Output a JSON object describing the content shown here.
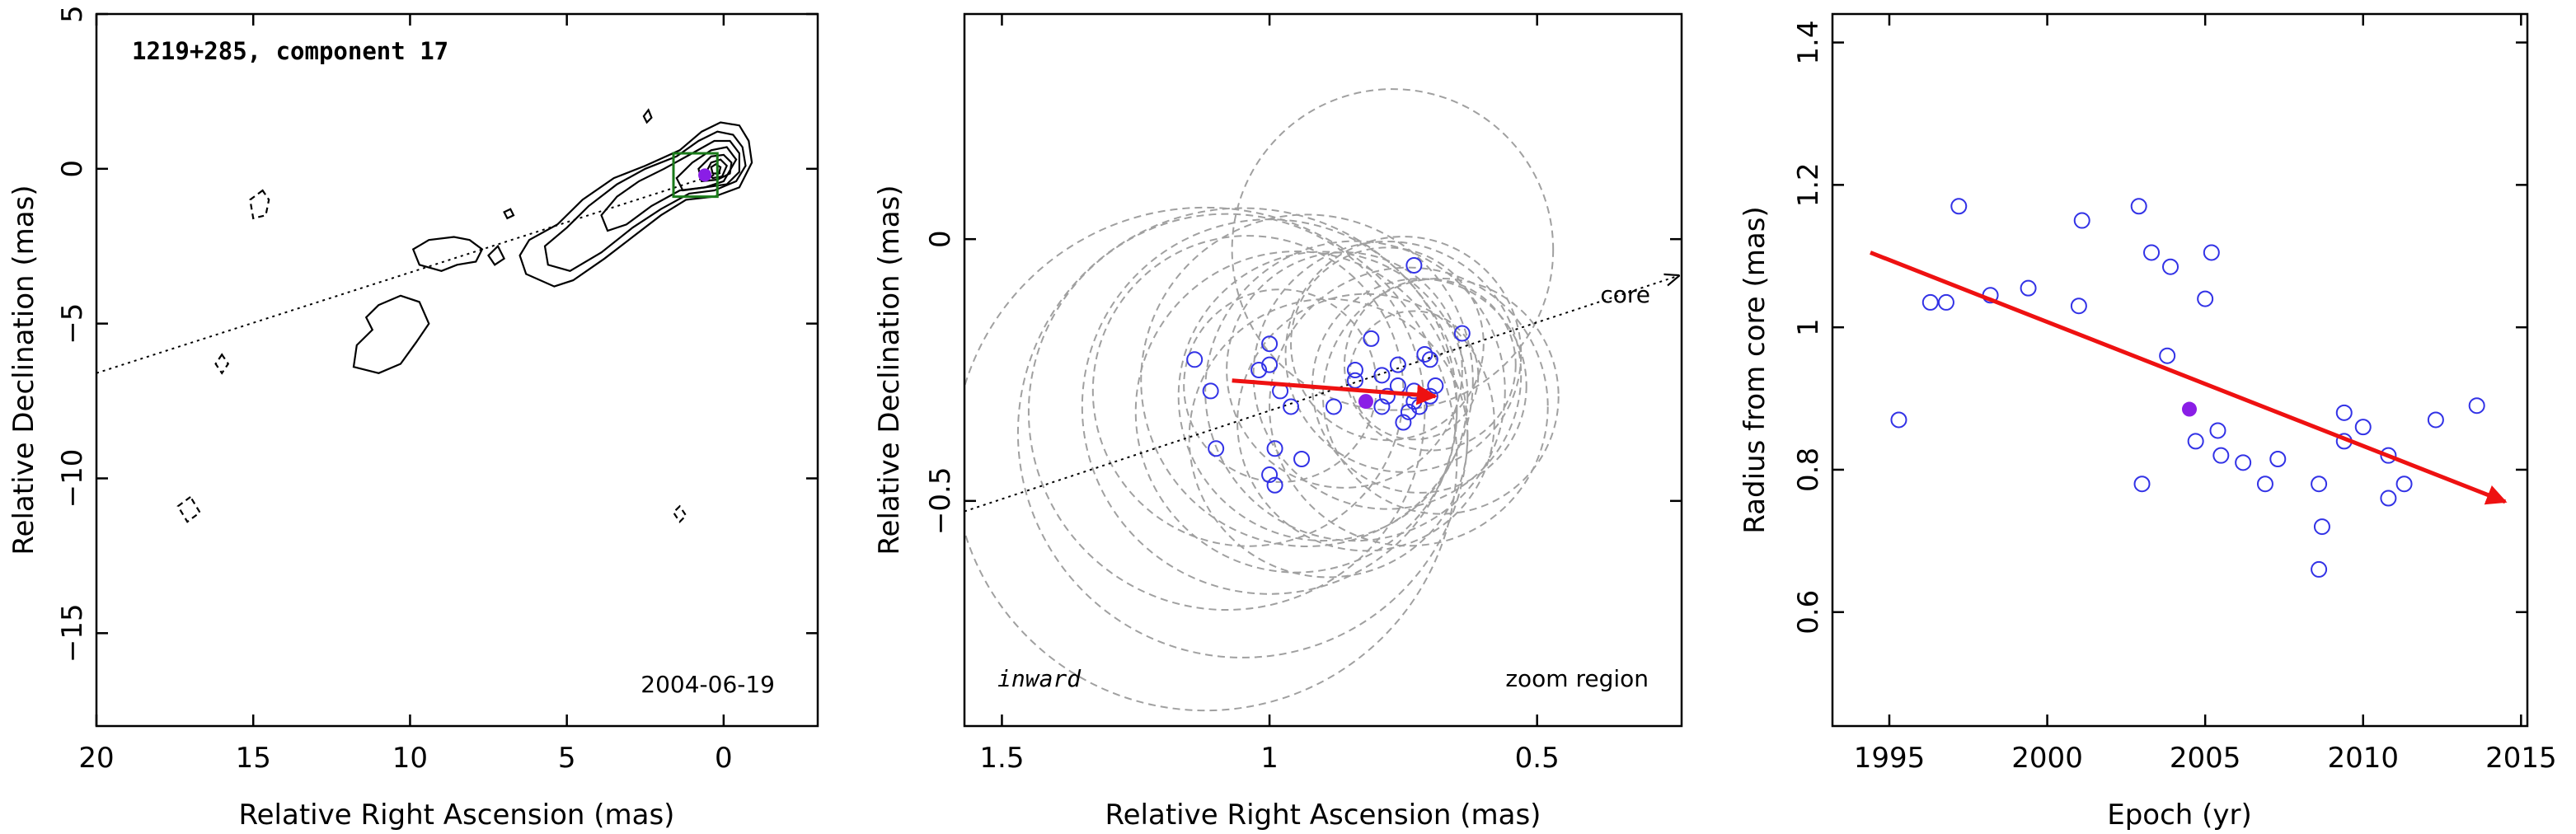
{
  "colors": {
    "circle": "#3232e6",
    "filled": "#8a1ee6",
    "arrow": "#ee1111",
    "fit_circle": "#a0a0a0",
    "box": "#1a7a1a",
    "contour": "#000000"
  },
  "chart_data": [
    {
      "type": "contour",
      "title": "1219+285, component 17",
      "date_label": "2004-06-19",
      "xlabel": "Relative Right Ascension (mas)",
      "ylabel": "Relative Declination (mas)",
      "xlim": [
        20,
        -3
      ],
      "ylim": [
        -18,
        5
      ],
      "xticks": [
        20,
        15,
        10,
        5,
        0
      ],
      "yticks": [
        5,
        0,
        -5,
        -10,
        -15
      ],
      "xtick_labels": [
        "20",
        "15",
        "10",
        "5",
        "0"
      ],
      "ytick_labels": [
        "5",
        "0",
        "−5",
        "−10",
        "−15"
      ],
      "core_line": [
        [
          20,
          -6.6
        ],
        [
          0,
          -0.1
        ]
      ],
      "component_point": [
        0.6,
        -0.2
      ],
      "zoom_box": {
        "x": [
          1.6,
          0.2
        ],
        "y": [
          -0.9,
          0.5
        ]
      },
      "contours_solid": [
        [
          [
            -0.8,
            0.9
          ],
          [
            -0.5,
            1.4
          ],
          [
            0.1,
            1.5
          ],
          [
            0.7,
            1.2
          ],
          [
            1.4,
            0.6
          ],
          [
            2.5,
            0.1
          ],
          [
            3.5,
            -0.3
          ],
          [
            4.5,
            -1.0
          ],
          [
            5.3,
            -1.8
          ],
          [
            6.2,
            -2.3
          ],
          [
            6.5,
            -2.8
          ],
          [
            6.3,
            -3.4
          ],
          [
            5.4,
            -3.8
          ],
          [
            4.8,
            -3.6
          ],
          [
            3.8,
            -2.9
          ],
          [
            2.9,
            -2.2
          ],
          [
            2.0,
            -1.5
          ],
          [
            1.2,
            -1.0
          ],
          [
            0.3,
            -0.9
          ],
          [
            -0.5,
            -0.6
          ],
          [
            -0.9,
            0.2
          ],
          [
            -0.8,
            0.9
          ]
        ],
        [
          [
            -0.6,
            0.7
          ],
          [
            -0.3,
            1.1
          ],
          [
            0.2,
            1.2
          ],
          [
            0.8,
            0.9
          ],
          [
            1.5,
            0.4
          ],
          [
            2.5,
            0.0
          ],
          [
            3.4,
            -0.5
          ],
          [
            4.3,
            -1.2
          ],
          [
            5.0,
            -1.9
          ],
          [
            5.7,
            -2.5
          ],
          [
            5.6,
            -3.1
          ],
          [
            4.9,
            -3.3
          ],
          [
            3.9,
            -2.7
          ],
          [
            2.9,
            -1.9
          ],
          [
            2.0,
            -1.3
          ],
          [
            1.1,
            -0.8
          ],
          [
            0.3,
            -0.7
          ],
          [
            -0.4,
            -0.4
          ],
          [
            -0.7,
            0.1
          ],
          [
            -0.6,
            0.7
          ]
        ],
        [
          [
            -0.5,
            0.5
          ],
          [
            -0.2,
            0.9
          ],
          [
            0.3,
            0.9
          ],
          [
            1.0,
            0.5
          ],
          [
            1.9,
            0.0
          ],
          [
            2.7,
            -0.4
          ],
          [
            3.4,
            -0.9
          ],
          [
            3.9,
            -1.5
          ],
          [
            3.7,
            -2.0
          ],
          [
            3.1,
            -1.8
          ],
          [
            2.3,
            -1.2
          ],
          [
            1.4,
            -0.7
          ],
          [
            0.6,
            -0.6
          ],
          [
            -0.1,
            -0.5
          ],
          [
            -0.5,
            -0.1
          ],
          [
            -0.5,
            0.5
          ]
        ],
        [
          [
            -0.4,
            0.3
          ],
          [
            -0.1,
            0.7
          ],
          [
            0.4,
            0.6
          ],
          [
            1.0,
            0.2
          ],
          [
            1.5,
            -0.3
          ],
          [
            1.3,
            -0.7
          ],
          [
            0.6,
            -0.6
          ],
          [
            0.0,
            -0.4
          ],
          [
            -0.4,
            0.3
          ]
        ],
        [
          [
            -0.25,
            0.2
          ],
          [
            0.0,
            0.45
          ],
          [
            0.4,
            0.4
          ],
          [
            0.8,
            0.0
          ],
          [
            0.7,
            -0.4
          ],
          [
            0.2,
            -0.35
          ],
          [
            -0.2,
            -0.15
          ],
          [
            -0.25,
            0.2
          ]
        ],
        [
          [
            -0.1,
            0.1
          ],
          [
            0.1,
            0.3
          ],
          [
            0.4,
            0.2
          ],
          [
            0.55,
            -0.1
          ],
          [
            0.35,
            -0.3
          ],
          [
            0.05,
            -0.25
          ],
          [
            -0.1,
            0.1
          ]
        ],
        [
          [
            0.1,
            0.05
          ],
          [
            0.25,
            0.15
          ],
          [
            0.4,
            0.05
          ],
          [
            0.35,
            -0.15
          ],
          [
            0.15,
            -0.15
          ],
          [
            0.1,
            0.05
          ]
        ],
        [
          [
            8.6,
            -2.2
          ],
          [
            9.4,
            -2.3
          ],
          [
            9.9,
            -2.6
          ],
          [
            9.7,
            -3.1
          ],
          [
            9.0,
            -3.3
          ],
          [
            8.5,
            -3.1
          ],
          [
            7.9,
            -3.0
          ],
          [
            7.7,
            -2.6
          ],
          [
            8.1,
            -2.3
          ],
          [
            8.6,
            -2.2
          ]
        ],
        [
          [
            11.0,
            -4.4
          ],
          [
            10.3,
            -4.1
          ],
          [
            9.7,
            -4.3
          ],
          [
            9.4,
            -5.0
          ],
          [
            9.8,
            -5.6
          ],
          [
            10.3,
            -6.3
          ],
          [
            11.0,
            -6.6
          ],
          [
            11.8,
            -6.4
          ],
          [
            11.7,
            -5.7
          ],
          [
            11.2,
            -5.2
          ],
          [
            11.4,
            -4.8
          ],
          [
            11.0,
            -4.4
          ]
        ],
        [
          [
            7.2,
            -2.5
          ],
          [
            7.5,
            -2.8
          ],
          [
            7.3,
            -3.1
          ],
          [
            7.0,
            -2.9
          ],
          [
            7.2,
            -2.5
          ]
        ],
        [
          [
            6.8,
            -1.3
          ],
          [
            7.0,
            -1.4
          ],
          [
            6.9,
            -1.6
          ],
          [
            6.7,
            -1.5
          ],
          [
            6.8,
            -1.3
          ]
        ],
        [
          [
            2.4,
            1.9
          ],
          [
            2.55,
            1.7
          ],
          [
            2.45,
            1.5
          ],
          [
            2.3,
            1.65
          ],
          [
            2.4,
            1.9
          ]
        ]
      ],
      "contours_dashed": [
        [
          [
            14.7,
            -0.7
          ],
          [
            15.1,
            -1.0
          ],
          [
            15.0,
            -1.6
          ],
          [
            14.6,
            -1.5
          ],
          [
            14.5,
            -1.0
          ],
          [
            14.7,
            -0.7
          ]
        ],
        [
          [
            16.0,
            -6.0
          ],
          [
            16.2,
            -6.3
          ],
          [
            16.0,
            -6.6
          ],
          [
            15.8,
            -6.3
          ],
          [
            16.0,
            -6.0
          ]
        ],
        [
          [
            17.0,
            -10.6
          ],
          [
            17.4,
            -10.9
          ],
          [
            17.1,
            -11.4
          ],
          [
            16.7,
            -11.1
          ],
          [
            17.0,
            -10.6
          ]
        ],
        [
          [
            1.4,
            -10.9
          ],
          [
            1.6,
            -11.1
          ],
          [
            1.4,
            -11.4
          ],
          [
            1.2,
            -11.2
          ],
          [
            1.4,
            -10.9
          ]
        ]
      ]
    },
    {
      "type": "scatter",
      "xlabel": "Relative Right Ascension (mas)",
      "ylabel": "Relative Declination (mas)",
      "xlim": [
        1.57,
        0.23
      ],
      "ylim": [
        -0.93,
        0.43
      ],
      "xticks": [
        1.5,
        1.0,
        0.5
      ],
      "yticks": [
        0.0,
        -0.5
      ],
      "xtick_labels": [
        "1.5",
        "1",
        "0.5"
      ],
      "ytick_labels": [
        "0",
        "−0.5"
      ],
      "annotations": {
        "core_label": "core",
        "inward_label": "inward",
        "zoom_label": "zoom region"
      },
      "core_line": [
        [
          1.57,
          -0.52
        ],
        [
          0.23,
          -0.07
        ]
      ],
      "points": [
        [
          0.73,
          -0.05
        ],
        [
          0.64,
          -0.18
        ],
        [
          0.81,
          -0.19
        ],
        [
          0.71,
          -0.22
        ],
        [
          0.7,
          -0.23
        ],
        [
          0.76,
          -0.24
        ],
        [
          1.0,
          -0.2
        ],
        [
          1.0,
          -0.24
        ],
        [
          0.84,
          -0.25
        ],
        [
          1.02,
          -0.25
        ],
        [
          0.79,
          -0.26
        ],
        [
          0.84,
          -0.27
        ],
        [
          0.76,
          -0.28
        ],
        [
          0.69,
          -0.28
        ],
        [
          0.73,
          -0.29
        ],
        [
          0.98,
          -0.29
        ],
        [
          0.78,
          -0.3
        ],
        [
          0.7,
          -0.3
        ],
        [
          0.73,
          -0.31
        ],
        [
          1.11,
          -0.29
        ],
        [
          0.79,
          -0.32
        ],
        [
          0.72,
          -0.32
        ],
        [
          0.96,
          -0.32
        ],
        [
          0.88,
          -0.32
        ],
        [
          0.74,
          -0.33
        ],
        [
          0.75,
          -0.35
        ],
        [
          0.99,
          -0.4
        ],
        [
          1.1,
          -0.4
        ],
        [
          0.94,
          -0.42
        ],
        [
          1.0,
          -0.45
        ],
        [
          0.99,
          -0.47
        ],
        [
          1.14,
          -0.23
        ]
      ],
      "filled_point": [
        0.82,
        -0.31
      ],
      "arrow": {
        "from": [
          1.07,
          -0.27
        ],
        "to": [
          0.69,
          -0.3
        ]
      },
      "fit_circles": [
        {
          "cx": 0.78,
          "cy": -0.26,
          "r": 0.25
        },
        {
          "cx": 0.84,
          "cy": -0.29,
          "r": 0.28
        },
        {
          "cx": 0.9,
          "cy": -0.3,
          "r": 0.27
        },
        {
          "cx": 0.95,
          "cy": -0.33,
          "r": 0.3
        },
        {
          "cx": 1.0,
          "cy": -0.32,
          "r": 0.35
        },
        {
          "cx": 1.05,
          "cy": -0.37,
          "r": 0.42
        },
        {
          "cx": 0.75,
          "cy": -0.22,
          "r": 0.22
        },
        {
          "cx": 0.72,
          "cy": -0.28,
          "r": 0.2
        },
        {
          "cx": 0.7,
          "cy": -0.24,
          "r": 0.16
        },
        {
          "cx": 0.73,
          "cy": -0.26,
          "r": 0.12
        },
        {
          "cx": 0.78,
          "cy": -0.2,
          "r": 0.18
        },
        {
          "cx": 0.86,
          "cy": -0.25,
          "r": 0.22
        },
        {
          "cx": 0.93,
          "cy": -0.27,
          "r": 0.31
        },
        {
          "cx": 1.04,
          "cy": -0.29,
          "r": 0.29
        },
        {
          "cx": 0.77,
          "cy": -0.02,
          "r": 0.3
        },
        {
          "cx": 0.82,
          "cy": -0.35,
          "r": 0.24
        },
        {
          "cx": 0.89,
          "cy": -0.38,
          "r": 0.26
        },
        {
          "cx": 0.98,
          "cy": -0.28,
          "r": 0.18
        },
        {
          "cx": 1.08,
          "cy": -0.33,
          "r": 0.37
        },
        {
          "cx": 1.12,
          "cy": -0.42,
          "r": 0.47
        },
        {
          "cx": 0.68,
          "cy": -0.3,
          "r": 0.22
        },
        {
          "cx": 0.74,
          "cy": -0.32,
          "r": 0.26
        }
      ]
    },
    {
      "type": "scatter",
      "xlabel": "Epoch (yr)",
      "ylabel": "Radius from core (mas)",
      "xlim": [
        1993.2,
        2015.2
      ],
      "ylim": [
        0.44,
        1.44
      ],
      "xticks": [
        1995,
        2000,
        2005,
        2010,
        2015
      ],
      "yticks": [
        0.6,
        0.8,
        1.0,
        1.2,
        1.4
      ],
      "xtick_labels": [
        "1995",
        "2000",
        "2005",
        "2010",
        "2015"
      ],
      "ytick_labels": [
        "0.6",
        "0.8",
        "1",
        "1.2",
        "1.4"
      ],
      "points": [
        [
          1995.3,
          0.87
        ],
        [
          1996.3,
          1.035
        ],
        [
          1996.8,
          1.035
        ],
        [
          1997.2,
          1.17
        ],
        [
          1998.2,
          1.045
        ],
        [
          1999.4,
          1.055
        ],
        [
          2001.0,
          1.03
        ],
        [
          2001.1,
          1.15
        ],
        [
          2002.9,
          1.17
        ],
        [
          2003.0,
          0.78
        ],
        [
          2003.3,
          1.105
        ],
        [
          2003.8,
          0.96
        ],
        [
          2003.9,
          1.085
        ],
        [
          2004.7,
          0.84
        ],
        [
          2005.0,
          1.04
        ],
        [
          2005.2,
          1.105
        ],
        [
          2005.4,
          0.855
        ],
        [
          2005.5,
          0.82
        ],
        [
          2006.2,
          0.81
        ],
        [
          2006.9,
          0.78
        ],
        [
          2007.3,
          0.815
        ],
        [
          2008.6,
          0.66
        ],
        [
          2008.6,
          0.78
        ],
        [
          2008.7,
          0.72
        ],
        [
          2009.4,
          0.84
        ],
        [
          2009.4,
          0.88
        ],
        [
          2010.0,
          0.86
        ],
        [
          2010.8,
          0.76
        ],
        [
          2010.8,
          0.82
        ],
        [
          2011.3,
          0.78
        ],
        [
          2012.3,
          0.87
        ],
        [
          2013.6,
          0.89
        ]
      ],
      "filled_point": [
        2004.5,
        0.885
      ],
      "arrow": {
        "from": [
          1994.4,
          1.105
        ],
        "to": [
          2014.5,
          0.755
        ]
      }
    }
  ]
}
